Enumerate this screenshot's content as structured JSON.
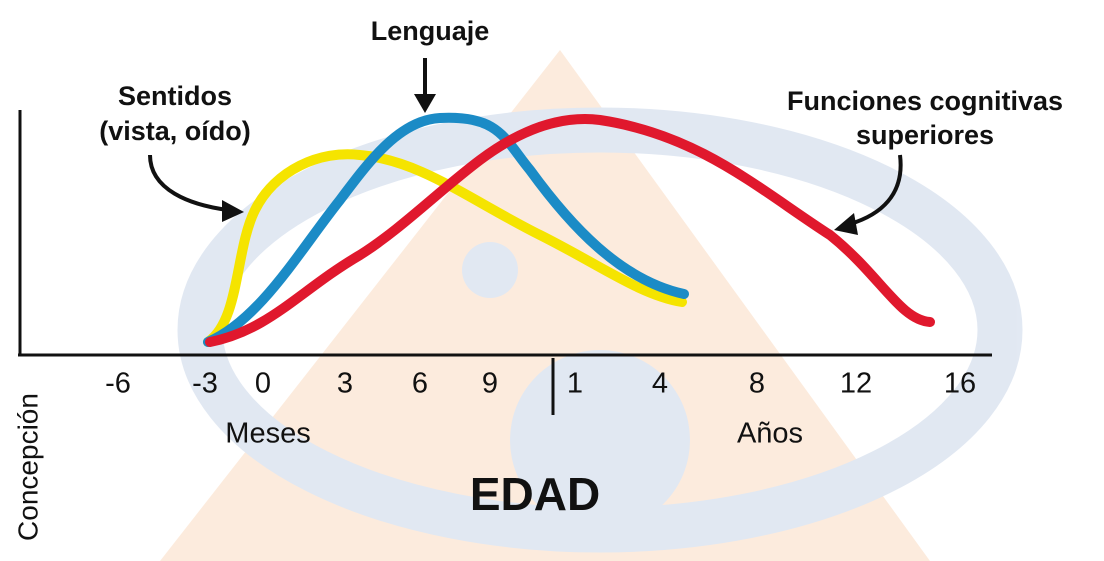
{
  "title": "EDAD",
  "side_label": "Concepción",
  "callouts": {
    "sentidos": [
      "Sentidos",
      "(vista, oído)"
    ],
    "lenguaje": [
      "Lenguaje"
    ],
    "funciones": [
      "Funciones cognitivas",
      "superiores"
    ]
  },
  "months": {
    "label": "Meses",
    "ticks": [
      "-6",
      "-3",
      "0",
      "3",
      "6",
      "9"
    ]
  },
  "years": {
    "label": "Años",
    "ticks": [
      "1",
      "4",
      "8",
      "12",
      "16"
    ]
  }
}
